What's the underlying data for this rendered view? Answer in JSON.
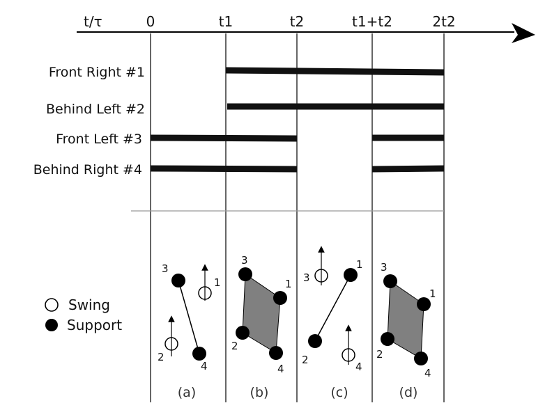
{
  "axis": {
    "variable_label": "t/τ",
    "ticks": [
      "0",
      "t1",
      "t2",
      "t1+t2",
      "2t2"
    ]
  },
  "legs": [
    {
      "label": "Front Right #1",
      "stance": [
        [
          "t1",
          "2t2"
        ]
      ]
    },
    {
      "label": "Behind Left #2",
      "stance": [
        [
          "t1",
          "2t2"
        ]
      ]
    },
    {
      "label": "Front Left #3",
      "stance": [
        [
          "0",
          "t2"
        ],
        [
          "t1+t2",
          "2t2"
        ]
      ]
    },
    {
      "label": "Behind Right #4",
      "stance": [
        [
          "0",
          "t2"
        ],
        [
          "t1+t2",
          "2t2"
        ]
      ]
    }
  ],
  "legend": {
    "swing": "Swing",
    "support": "Support"
  },
  "panels": [
    {
      "label": "(a)",
      "legs": {
        "1": "swing",
        "2": "swing",
        "3": "support",
        "4": "support"
      }
    },
    {
      "label": "(b)",
      "legs": {
        "1": "support",
        "2": "support",
        "3": "support",
        "4": "support"
      }
    },
    {
      "label": "(c)",
      "legs": {
        "1": "support",
        "2": "support",
        "3": "swing",
        "4": "swing"
      }
    },
    {
      "label": "(d)",
      "legs": {
        "1": "support",
        "2": "support",
        "3": "support",
        "4": "support"
      }
    }
  ],
  "leg_numbers": [
    "1",
    "2",
    "3",
    "4"
  ],
  "colors": {
    "line": "#000000",
    "stance_bar": "#111111",
    "support_polygon": "#808080",
    "divider": "#999999"
  }
}
